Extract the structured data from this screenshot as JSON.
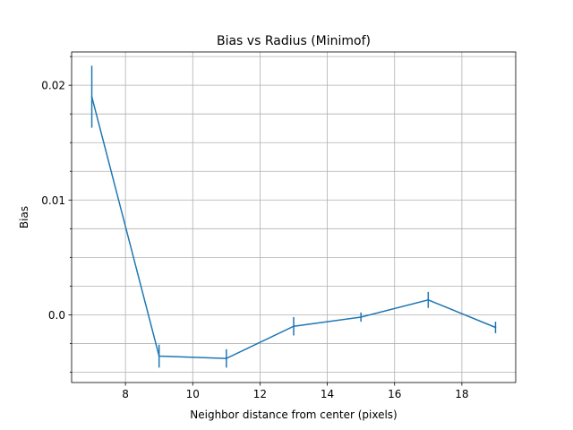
{
  "chart_data": {
    "type": "line",
    "title": "Bias vs Radius (Minimof)",
    "xlabel": "Neighbor distance from center (pixels)",
    "ylabel": "Bias",
    "xlim": [
      6.4,
      19.6
    ],
    "ylim": [
      -0.0059,
      0.0229
    ],
    "xticks": [
      8,
      10,
      12,
      14,
      16,
      18
    ],
    "yticks": [
      0.0,
      0.01,
      0.02
    ],
    "ytick_labels": [
      "0.0",
      "0.01",
      "0.02"
    ],
    "yminor": [
      -0.005,
      -0.0025,
      0.0025,
      0.005,
      0.0075,
      0.0125,
      0.015,
      0.0175,
      0.0225
    ],
    "grid": true,
    "color": "#1f77b4",
    "series": [
      {
        "x": [
          7,
          9,
          11,
          13,
          15,
          17,
          19
        ],
        "y": [
          0.019,
          -0.0036,
          -0.0038,
          -0.001,
          -0.0002,
          0.0013,
          -0.0011
        ],
        "yerr": [
          0.0027,
          0.001,
          0.0008,
          0.0008,
          0.0004,
          0.0007,
          0.0005
        ]
      }
    ]
  }
}
